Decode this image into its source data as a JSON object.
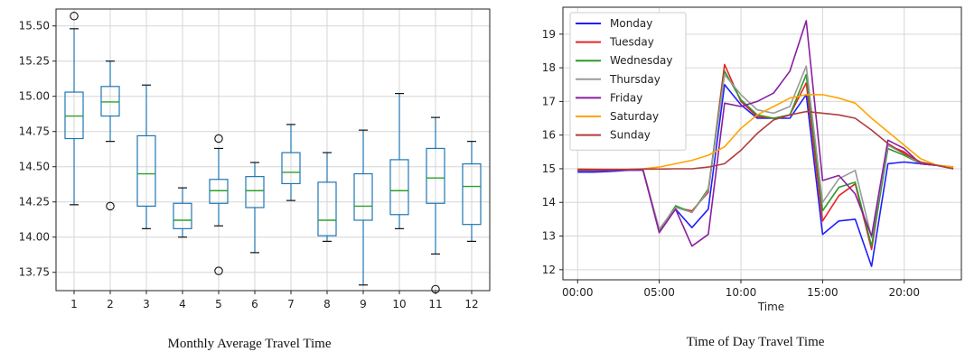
{
  "chart_data": [
    {
      "type": "box",
      "caption": "Monthly Average Travel Time",
      "categories": [
        "1",
        "2",
        "3",
        "4",
        "5",
        "6",
        "7",
        "8",
        "9",
        "10",
        "11",
        "12"
      ],
      "ylim": [
        13.62,
        15.62
      ],
      "yticks": [
        "13.75",
        "14.00",
        "14.25",
        "14.50",
        "14.75",
        "15.00",
        "15.25",
        "15.50"
      ],
      "ytick_values": [
        13.75,
        14.0,
        14.25,
        14.5,
        14.75,
        15.0,
        15.25,
        15.5
      ],
      "grid": true,
      "colors": {
        "box": "#1f77b4",
        "median": "#2ca02c",
        "whisker": "#111111",
        "flier": "#111111"
      },
      "boxes": [
        {
          "whislo": 14.23,
          "q1": 14.7,
          "med": 14.86,
          "q3": 15.03,
          "whishi": 15.48,
          "fliers": [
            15.57
          ]
        },
        {
          "whislo": 14.68,
          "q1": 14.86,
          "med": 14.96,
          "q3": 15.07,
          "whishi": 15.25,
          "fliers": [
            14.22
          ]
        },
        {
          "whislo": 14.06,
          "q1": 14.22,
          "med": 14.45,
          "q3": 14.72,
          "whishi": 15.08,
          "fliers": []
        },
        {
          "whislo": 14.0,
          "q1": 14.06,
          "med": 14.12,
          "q3": 14.24,
          "whishi": 14.35,
          "fliers": []
        },
        {
          "whislo": 14.08,
          "q1": 14.24,
          "med": 14.33,
          "q3": 14.41,
          "whishi": 14.63,
          "fliers": [
            14.7,
            13.76
          ]
        },
        {
          "whislo": 13.89,
          "q1": 14.21,
          "med": 14.33,
          "q3": 14.43,
          "whishi": 14.53,
          "fliers": []
        },
        {
          "whislo": 14.26,
          "q1": 14.38,
          "med": 14.46,
          "q3": 14.6,
          "whishi": 14.8,
          "fliers": []
        },
        {
          "whislo": 13.97,
          "q1": 14.01,
          "med": 14.12,
          "q3": 14.39,
          "whishi": 14.6,
          "fliers": []
        },
        {
          "whislo": 13.66,
          "q1": 14.12,
          "med": 14.22,
          "q3": 14.45,
          "whishi": 14.76,
          "fliers": []
        },
        {
          "whislo": 14.06,
          "q1": 14.16,
          "med": 14.33,
          "q3": 14.55,
          "whishi": 15.02,
          "fliers": []
        },
        {
          "whislo": 13.88,
          "q1": 14.24,
          "med": 14.42,
          "q3": 14.63,
          "whishi": 14.85,
          "fliers": [
            13.63
          ]
        },
        {
          "whislo": 13.97,
          "q1": 14.09,
          "med": 14.36,
          "q3": 14.52,
          "whishi": 14.68,
          "fliers": []
        }
      ]
    },
    {
      "type": "line",
      "caption": "Time of Day Travel Time",
      "xlabel": "Time",
      "ylabel": "",
      "xlim": [
        -0.9,
        23.5
      ],
      "ylim": [
        11.7,
        19.8
      ],
      "xtick_values": [
        0,
        5,
        10,
        15,
        20
      ],
      "xticks": [
        "00:00",
        "05:00",
        "10:00",
        "15:00",
        "20:00"
      ],
      "ytick_values": [
        12,
        13,
        14,
        15,
        16,
        17,
        18,
        19
      ],
      "yticks": [
        "12",
        "13",
        "14",
        "15",
        "16",
        "17",
        "18",
        "19"
      ],
      "grid": true,
      "legend_position": "top-left",
      "x": [
        0,
        1,
        2,
        3,
        4,
        5,
        6,
        7,
        8,
        9,
        10,
        11,
        12,
        13,
        14,
        15,
        16,
        17,
        18,
        19,
        20,
        21,
        22,
        23
      ],
      "series": [
        {
          "name": "Monday",
          "color": "#1f1fff",
          "values": [
            14.9,
            14.9,
            14.92,
            14.95,
            14.96,
            13.15,
            13.8,
            13.25,
            13.8,
            17.5,
            16.9,
            16.5,
            16.5,
            16.5,
            17.2,
            13.05,
            13.45,
            13.5,
            12.1,
            15.15,
            15.2,
            15.15,
            15.1,
            15.0
          ]
        },
        {
          "name": "Tuesday",
          "color": "#e82424",
          "values": [
            14.95,
            14.95,
            14.95,
            14.96,
            14.97,
            13.2,
            13.85,
            13.75,
            14.3,
            18.1,
            17.0,
            16.55,
            16.5,
            16.6,
            17.55,
            13.45,
            14.2,
            14.55,
            12.6,
            15.7,
            15.5,
            15.15,
            15.1,
            15.05
          ]
        },
        {
          "name": "Wednesday",
          "color": "#2a9a2a",
          "values": [
            14.95,
            14.95,
            14.95,
            14.96,
            14.97,
            13.15,
            13.9,
            13.7,
            14.4,
            17.9,
            17.05,
            16.6,
            16.5,
            16.6,
            17.8,
            13.75,
            14.45,
            14.6,
            12.7,
            15.6,
            15.4,
            15.15,
            15.1,
            15.0
          ]
        },
        {
          "name": "Thursday",
          "color": "#999999",
          "values": [
            14.95,
            14.95,
            14.95,
            14.96,
            14.97,
            13.2,
            13.85,
            13.7,
            14.35,
            17.8,
            17.2,
            16.75,
            16.65,
            16.85,
            18.05,
            14.0,
            14.7,
            14.95,
            12.95,
            15.7,
            15.45,
            15.15,
            15.1,
            15.0
          ]
        },
        {
          "name": "Friday",
          "color": "#8a1fa0",
          "values": [
            14.95,
            14.95,
            14.95,
            14.96,
            14.97,
            13.1,
            13.8,
            12.7,
            13.05,
            16.95,
            16.85,
            17.0,
            17.25,
            17.9,
            19.4,
            14.65,
            14.8,
            14.25,
            13.0,
            15.85,
            15.6,
            15.15,
            15.1,
            15.05
          ]
        },
        {
          "name": "Saturday",
          "color": "#ffa500",
          "values": [
            15.0,
            14.99,
            14.98,
            14.98,
            15.0,
            15.05,
            15.15,
            15.25,
            15.4,
            15.65,
            16.2,
            16.6,
            16.85,
            17.1,
            17.2,
            17.2,
            17.1,
            16.95,
            16.5,
            16.1,
            15.7,
            15.3,
            15.1,
            15.05
          ]
        },
        {
          "name": "Sunday",
          "color": "#b03c3c",
          "values": [
            14.98,
            14.98,
            14.98,
            14.98,
            14.99,
            14.99,
            15.0,
            15.0,
            15.05,
            15.15,
            15.55,
            16.05,
            16.45,
            16.6,
            16.7,
            16.65,
            16.6,
            16.5,
            16.15,
            15.75,
            15.45,
            15.2,
            15.1,
            15.0
          ]
        }
      ]
    }
  ]
}
